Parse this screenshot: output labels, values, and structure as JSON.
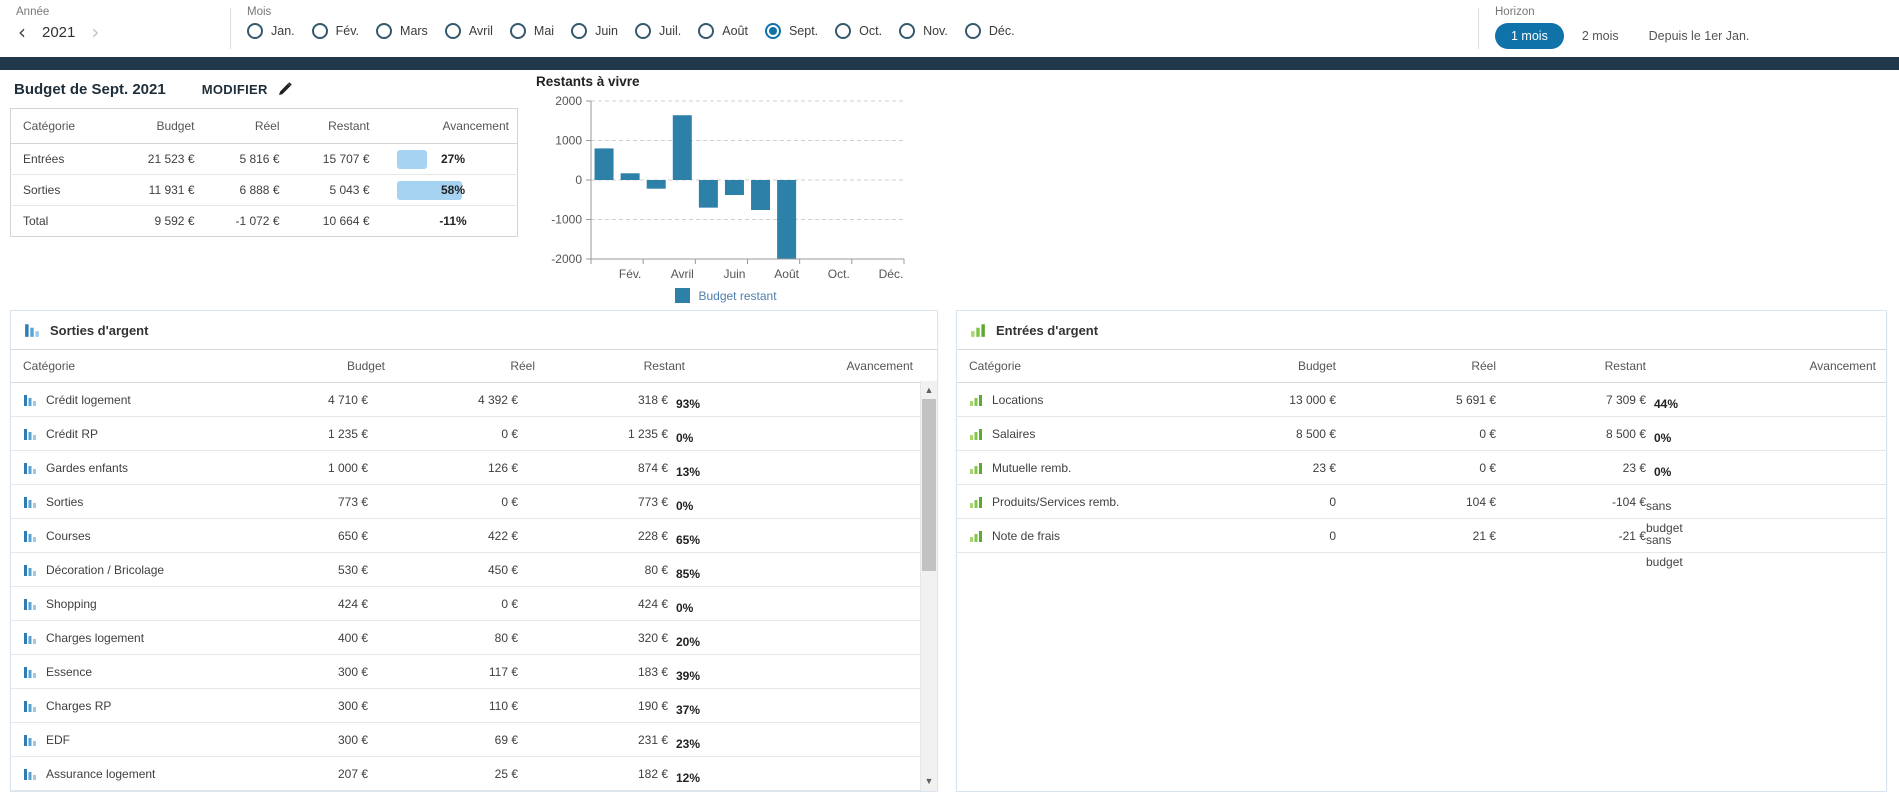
{
  "colors": {
    "primary": "#0f72a8",
    "band": "#20384a",
    "chart_bar": "#2d81a9",
    "progress_bar": "#a6d3f2"
  },
  "filters": {
    "year": {
      "label": "Année",
      "value": "2021",
      "prev": "‹",
      "next": "›"
    },
    "months": {
      "label": "Mois",
      "options": [
        {
          "label": "Jan.",
          "selected": false
        },
        {
          "label": "Fév.",
          "selected": false
        },
        {
          "label": "Mars",
          "selected": false
        },
        {
          "label": "Avril",
          "selected": false
        },
        {
          "label": "Mai",
          "selected": false
        },
        {
          "label": "Juin",
          "selected": false
        },
        {
          "label": "Juil.",
          "selected": false
        },
        {
          "label": "Août",
          "selected": false
        },
        {
          "label": "Sept.",
          "selected": true
        },
        {
          "label": "Oct.",
          "selected": false
        },
        {
          "label": "Nov.",
          "selected": false
        },
        {
          "label": "Déc.",
          "selected": false
        }
      ]
    },
    "horizon": {
      "label": "Horizon",
      "options": [
        {
          "label": "1 mois",
          "selected": true
        },
        {
          "label": "2 mois",
          "selected": false
        },
        {
          "label": "Depuis le 1er Jan.",
          "selected": false
        }
      ]
    }
  },
  "budget_summary": {
    "title": "Budget de Sept. 2021",
    "edit_label": "MODIFIER",
    "columns": {
      "category": "Catégorie",
      "budget": "Budget",
      "real": "Réel",
      "remaining": "Restant",
      "progress": "Avancement"
    },
    "rows": [
      {
        "category": "Entrées",
        "budget": "21 523 €",
        "real": "5 816 €",
        "remaining": "15 707 €",
        "progress_pct": 27,
        "progress_label": "27%"
      },
      {
        "category": "Sorties",
        "budget": "11 931 €",
        "real": "6 888 €",
        "remaining": "5 043 €",
        "progress_pct": 58,
        "progress_label": "58%"
      },
      {
        "category": "Total",
        "budget": "9 592 €",
        "real": "-1 072 €",
        "remaining": "10 664 €",
        "progress_pct": 0,
        "progress_label": "-11%"
      }
    ]
  },
  "chart_data": {
    "type": "bar",
    "title": "Restants à vivre",
    "categories": [
      "Jan.",
      "Fév.",
      "Mars",
      "Avril",
      "Mai",
      "Juin",
      "Juil.",
      "Août",
      "Sept.",
      "Oct.",
      "Nov.",
      "Déc."
    ],
    "x_tick_labels": [
      "Fév.",
      "Avril",
      "Juin",
      "Août",
      "Oct.",
      "Déc."
    ],
    "series": [
      {
        "name": "Budget restant",
        "values": [
          800,
          170,
          -220,
          1640,
          -700,
          -380,
          -760,
          -2000,
          null,
          null,
          null,
          null
        ]
      }
    ],
    "ylim": [
      -2000,
      2000
    ],
    "y_ticks": [
      2000,
      1000,
      0,
      -1000,
      -2000
    ],
    "grid": "horizontal-dashed",
    "legend_position": "bottom",
    "bar_color": "#2d81a9"
  },
  "outflows": {
    "title": "Sorties d'argent",
    "columns": {
      "category": "Catégorie",
      "budget": "Budget",
      "real": "Réel",
      "remaining": "Restant",
      "progress": "Avancement"
    },
    "rows": [
      {
        "category": "Crédit logement",
        "budget": "4 710 €",
        "real": "4 392 €",
        "remaining": "318 €",
        "progress_pct": 93,
        "progress_label": "93%",
        "no_budget": false
      },
      {
        "category": "Crédit RP",
        "budget": "1 235 €",
        "real": "0 €",
        "remaining": "1 235 €",
        "progress_pct": 0,
        "progress_label": "0%",
        "no_budget": false
      },
      {
        "category": "Gardes enfants",
        "budget": "1 000 €",
        "real": "126 €",
        "remaining": "874 €",
        "progress_pct": 13,
        "progress_label": "13%",
        "no_budget": false
      },
      {
        "category": "Sorties",
        "budget": "773 €",
        "real": "0 €",
        "remaining": "773 €",
        "progress_pct": 0,
        "progress_label": "0%",
        "no_budget": false
      },
      {
        "category": "Courses",
        "budget": "650 €",
        "real": "422 €",
        "remaining": "228 €",
        "progress_pct": 65,
        "progress_label": "65%",
        "no_budget": false
      },
      {
        "category": "Décoration / Bricolage",
        "budget": "530 €",
        "real": "450 €",
        "remaining": "80 €",
        "progress_pct": 85,
        "progress_label": "85%",
        "no_budget": false
      },
      {
        "category": "Shopping",
        "budget": "424 €",
        "real": "0 €",
        "remaining": "424 €",
        "progress_pct": 0,
        "progress_label": "0%",
        "no_budget": false
      },
      {
        "category": "Charges logement",
        "budget": "400 €",
        "real": "80 €",
        "remaining": "320 €",
        "progress_pct": 20,
        "progress_label": "20%",
        "no_budget": false
      },
      {
        "category": "Essence",
        "budget": "300 €",
        "real": "117 €",
        "remaining": "183 €",
        "progress_pct": 39,
        "progress_label": "39%",
        "no_budget": false
      },
      {
        "category": "Charges RP",
        "budget": "300 €",
        "real": "110 €",
        "remaining": "190 €",
        "progress_pct": 37,
        "progress_label": "37%",
        "no_budget": false
      },
      {
        "category": "EDF",
        "budget": "300 €",
        "real": "69 €",
        "remaining": "231 €",
        "progress_pct": 23,
        "progress_label": "23%",
        "no_budget": false
      },
      {
        "category": "Assurance logement",
        "budget": "207 €",
        "real": "25 €",
        "remaining": "182 €",
        "progress_pct": 12,
        "progress_label": "12%",
        "no_budget": false
      }
    ]
  },
  "inflows": {
    "title": "Entrées d'argent",
    "columns": {
      "category": "Catégorie",
      "budget": "Budget",
      "real": "Réel",
      "remaining": "Restant",
      "progress": "Avancement"
    },
    "rows": [
      {
        "category": "Locations",
        "budget": "13 000 €",
        "real": "5 691 €",
        "remaining": "7 309 €",
        "progress_pct": 44,
        "progress_label": "44%",
        "no_budget": false
      },
      {
        "category": "Salaires",
        "budget": "8 500 €",
        "real": "0 €",
        "remaining": "8 500 €",
        "progress_pct": 0,
        "progress_label": "0%",
        "no_budget": false
      },
      {
        "category": "Mutuelle remb.",
        "budget": "23 €",
        "real": "0 €",
        "remaining": "23 €",
        "progress_pct": 0,
        "progress_label": "0%",
        "no_budget": false
      },
      {
        "category": "Produits/Services remb.",
        "budget": "0",
        "real": "104 €",
        "remaining": "-104 €",
        "progress_pct": null,
        "progress_label": "sans budget",
        "no_budget": true
      },
      {
        "category": "Note de frais",
        "budget": "0",
        "real": "21 €",
        "remaining": "-21 €",
        "progress_pct": null,
        "progress_label": "sans budget",
        "no_budget": true
      }
    ]
  }
}
